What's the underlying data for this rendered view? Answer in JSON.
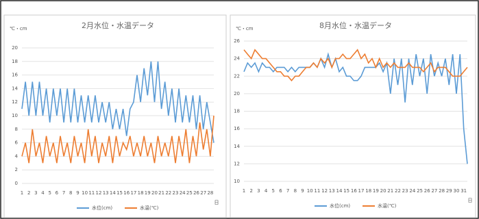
{
  "chart_data": [
    {
      "type": "line",
      "title": "2月水位・水温データ",
      "ylabel": "℃・cm",
      "xlabel": "日",
      "x": [
        1,
        1.5,
        2,
        2.5,
        3,
        3.5,
        4,
        4.5,
        5,
        5.5,
        6,
        6.5,
        7,
        7.5,
        8,
        8.5,
        9,
        9.5,
        10,
        10.5,
        11,
        11.5,
        12,
        12.5,
        13,
        13.5,
        14,
        14.5,
        15,
        15.5,
        16,
        16.5,
        17,
        17.5,
        18,
        18.5,
        19,
        19.5,
        20,
        20.5,
        21,
        21.5,
        22,
        22.5,
        23,
        23.5,
        24,
        24.5,
        25,
        25.5,
        26,
        26.5,
        27,
        27.5,
        28,
        28.5
      ],
      "xlim": [
        1,
        28.5
      ],
      "xticks": [
        1,
        2,
        3,
        4,
        5,
        6,
        7,
        8,
        9,
        10,
        11,
        12,
        13,
        14,
        15,
        16,
        17,
        18,
        19,
        20,
        21,
        22,
        23,
        24,
        25,
        26,
        27,
        28
      ],
      "ylim": [
        0,
        20
      ],
      "yticks": [
        0,
        2,
        4,
        6,
        8,
        10,
        12,
        14,
        16,
        18,
        20
      ],
      "grid": true,
      "series": [
        {
          "name": "水位(cm)",
          "color": "#5b9bd5",
          "values": [
            11,
            15,
            10,
            15,
            10,
            15,
            10,
            14,
            9,
            14,
            10,
            14,
            9,
            14,
            9,
            14,
            9,
            13,
            9,
            13,
            9,
            13,
            9,
            12,
            9,
            12,
            8,
            11,
            8,
            11,
            7,
            11,
            12,
            16,
            12,
            17,
            13,
            18,
            12,
            18,
            11,
            15,
            10,
            14,
            9,
            14,
            9,
            13,
            9,
            13,
            8,
            13,
            8,
            12,
            9,
            6
          ]
        },
        {
          "name": "水温(℃)",
          "color": "#ed7d31",
          "values": [
            4,
            6,
            3,
            8,
            4,
            6,
            3,
            7,
            4,
            6,
            3,
            7,
            4,
            6,
            3,
            7,
            4,
            6,
            3,
            8,
            4,
            7,
            3,
            6,
            4,
            7,
            3,
            7,
            4,
            6,
            5,
            7,
            4,
            6,
            4,
            7,
            4,
            6,
            3,
            7,
            4,
            6,
            4,
            7,
            3,
            7,
            4,
            8,
            3,
            7,
            4,
            9,
            5,
            8,
            4,
            10
          ]
        }
      ]
    },
    {
      "type": "line",
      "title": "8月水位・水温データ",
      "ylabel": "℃・cm",
      "xlabel": "日",
      "x": [
        1,
        1.5,
        2,
        2.5,
        3,
        3.5,
        4,
        4.5,
        5,
        5.5,
        6,
        6.5,
        7,
        7.5,
        8,
        8.5,
        9,
        9.5,
        10,
        10.5,
        11,
        11.5,
        12,
        12.5,
        13,
        13.5,
        14,
        14.5,
        15,
        15.5,
        16,
        16.5,
        17,
        17.5,
        18,
        18.5,
        19,
        19.5,
        20,
        20.5,
        21,
        21.5,
        22,
        22.5,
        23,
        23.5,
        24,
        24.5,
        25,
        25.5,
        26,
        26.5,
        27,
        27.5,
        28,
        28.5,
        29,
        29.5,
        30,
        30.5,
        31,
        31.5
      ],
      "xlim": [
        1,
        31.5
      ],
      "xticks": [
        1,
        2,
        3,
        4,
        5,
        6,
        7,
        8,
        9,
        10,
        11,
        12,
        13,
        14,
        15,
        16,
        17,
        18,
        19,
        20,
        21,
        22,
        23,
        24,
        25,
        26,
        27,
        28,
        29,
        30,
        31
      ],
      "ylim": [
        10,
        26
      ],
      "yticks": [
        10,
        12,
        14,
        16,
        18,
        20,
        22,
        24,
        26
      ],
      "grid": true,
      "series": [
        {
          "name": "水位(cm)",
          "color": "#5b9bd5",
          "values": [
            22.5,
            23.5,
            23,
            23.5,
            22.5,
            23.5,
            23,
            23,
            22.5,
            23,
            23,
            23,
            22.5,
            23,
            22.5,
            23,
            23,
            23,
            23,
            23.5,
            23,
            24,
            23,
            24.5,
            23,
            24,
            22.5,
            23,
            22,
            22,
            21.5,
            21.5,
            22,
            23,
            23,
            23,
            23,
            23.5,
            22.5,
            23.5,
            20,
            24,
            21,
            24,
            19,
            24,
            21,
            24.5,
            22,
            24,
            20,
            24.5,
            22,
            23.5,
            22,
            24,
            21,
            24.5,
            20,
            24.5,
            16,
            12
          ]
        },
        {
          "name": "水温(℃)",
          "color": "#ed7d31",
          "values": [
            25,
            24.5,
            24,
            25,
            24.5,
            24,
            24,
            23.5,
            23,
            22.5,
            22.5,
            22,
            22,
            21.5,
            22,
            22,
            22.5,
            23,
            23,
            23.5,
            23,
            24,
            23.5,
            24,
            23,
            24,
            24,
            24.5,
            24,
            24,
            24.5,
            25,
            24,
            24.5,
            23.5,
            24,
            23,
            24,
            23,
            23.5,
            23,
            23.5,
            23,
            23,
            23,
            23.5,
            23,
            23,
            23,
            22.5,
            23,
            23.5,
            22.5,
            23,
            23,
            23,
            22.5,
            22,
            22,
            22,
            22.5,
            23
          ]
        }
      ]
    }
  ]
}
